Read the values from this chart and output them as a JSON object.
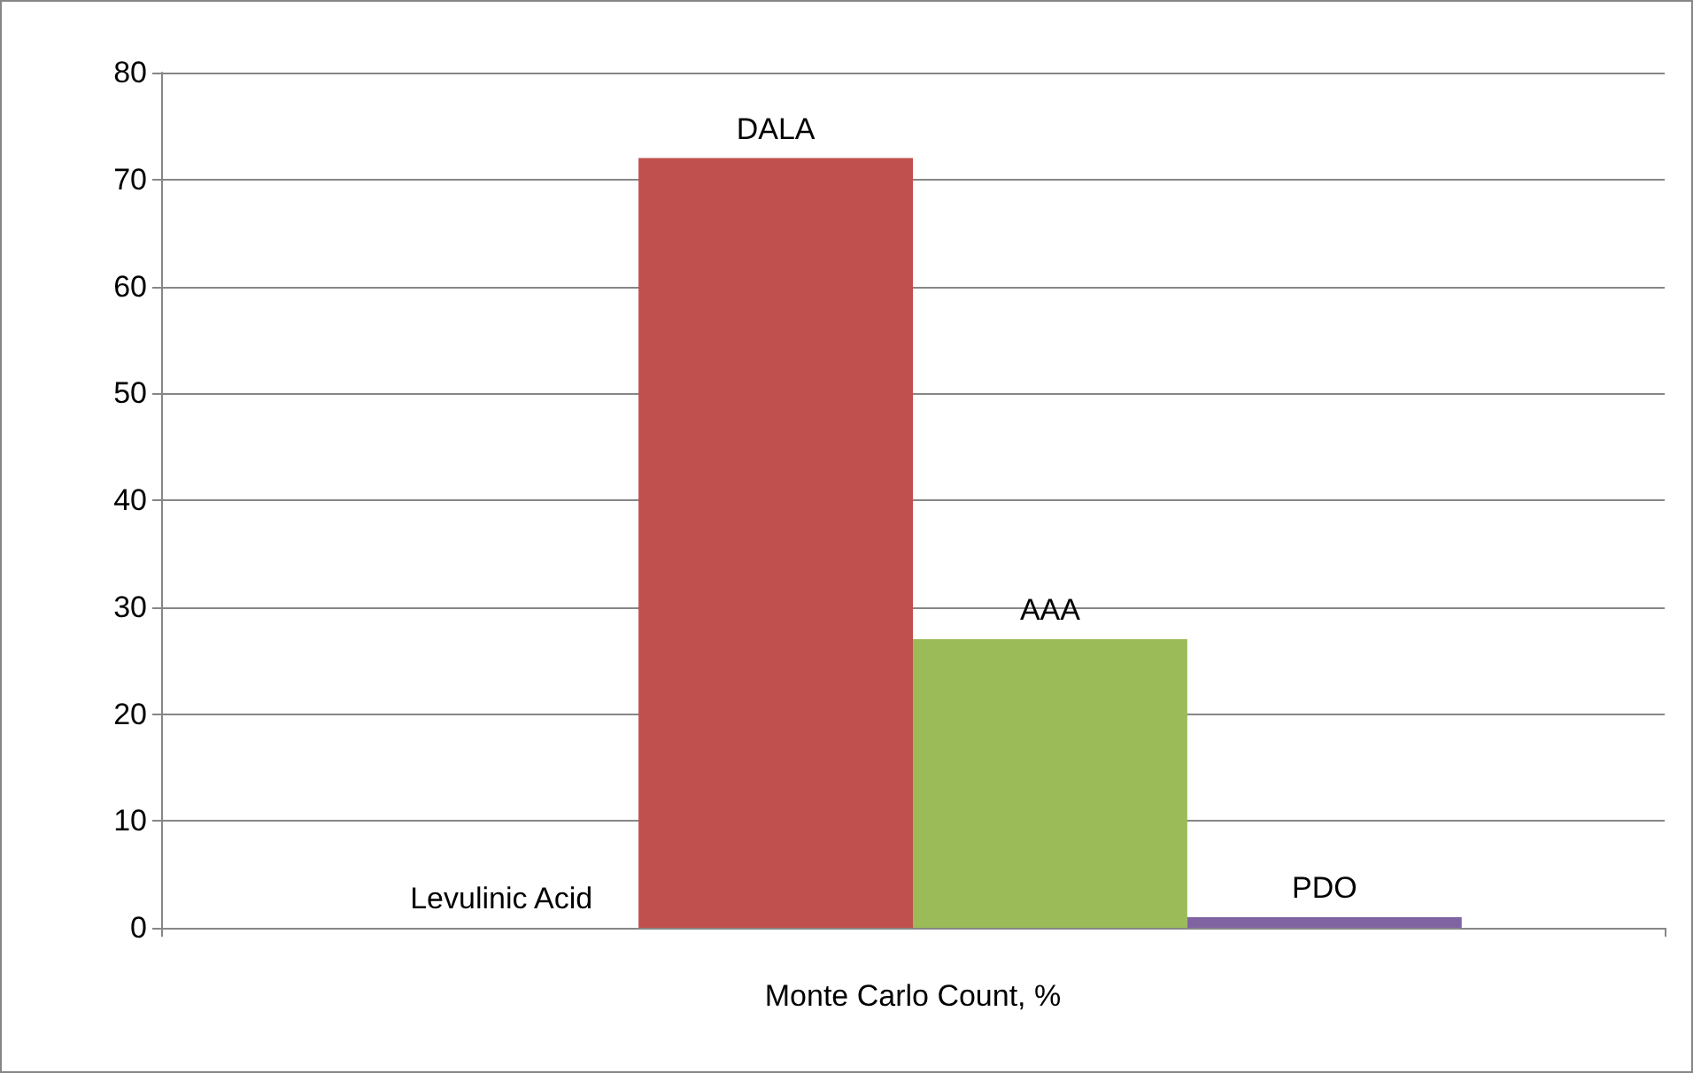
{
  "chart_data": {
    "type": "bar",
    "categories": [
      "Monte Carlo Count, %"
    ],
    "series": [
      {
        "name": "Levulinic Acid",
        "values": [
          0
        ]
      },
      {
        "name": "DALA",
        "color": "#c0504d",
        "values": [
          72
        ]
      },
      {
        "name": "AAA",
        "color": "#9bbb59",
        "values": [
          27
        ]
      },
      {
        "name": "PDO",
        "color": "#8064a2",
        "values": [
          1
        ]
      }
    ],
    "ylim": [
      0,
      80
    ],
    "yticks": [
      0,
      10,
      20,
      30,
      40,
      50,
      60,
      70,
      80
    ],
    "grid": "y",
    "legend": false
  }
}
